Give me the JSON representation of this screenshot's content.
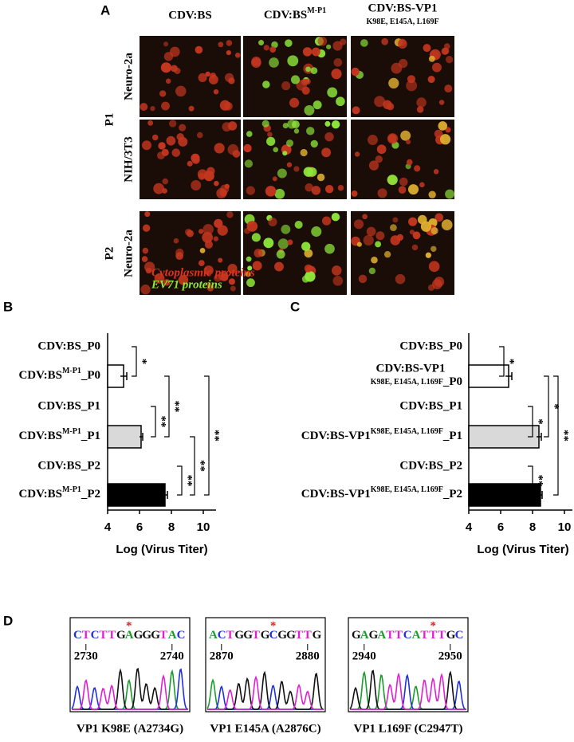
{
  "panel_a": {
    "label": "A",
    "columns": [
      "CDV:BS",
      {
        "base": "CDV:BS",
        "sup": "M-P1"
      },
      {
        "base": "CDV:BS-VP1",
        "sub": "K98E, E145A, L169F"
      }
    ],
    "groups": [
      {
        "name": "P1",
        "rows": [
          "Neuro-2a",
          "NIH/3T3"
        ]
      },
      {
        "name": "P2",
        "rows": [
          "Neuro-2a"
        ]
      }
    ],
    "legend": [
      "Cytoplasmic proteins",
      "EV71 proteins"
    ]
  },
  "panel_b": {
    "label": "B",
    "chart": {
      "type": "bar",
      "categories": [
        "CDV:BS_P0",
        {
          "base": "CDV:BS",
          "sup": "M-P1",
          "suffix": "_P0"
        },
        "CDV:BS_P1",
        {
          "base": "CDV:BS",
          "sup": "M-P1",
          "suffix": "_P1"
        },
        "CDV:BS_P2",
        {
          "base": "CDV:BS",
          "sup": "M-P1",
          "suffix": "_P2"
        }
      ],
      "values": [
        null,
        5.0,
        null,
        6.1,
        null,
        7.6
      ],
      "errors": [
        null,
        0.2,
        null,
        0.1,
        null,
        0.15
      ],
      "colors": [
        null,
        "#ffffff",
        null,
        "#d9d9d9",
        null,
        "#000000"
      ],
      "xlim": [
        4,
        10.8
      ],
      "xticks": [
        4,
        6,
        8,
        10
      ],
      "xlabel": "Log (Virus Titer)",
      "significance": [
        "*",
        "**",
        "**",
        "**",
        "**",
        "**"
      ]
    }
  },
  "panel_c": {
    "label": "C",
    "chart": {
      "type": "bar",
      "categories": [
        "CDV:BS_P0",
        {
          "base": "CDV:BS-VP1",
          "sub": "K98E, E145A, L169F",
          "suffix": "_P0"
        },
        "CDV:BS_P1",
        {
          "base": "CDV:BS-VP1",
          "sup": "K98E, E145A, L169F",
          "suffix": "_P1"
        },
        "CDV:BS_P2",
        {
          "base": "CDV:BS-VP1",
          "sup": "K98E, E145A, L169F",
          "suffix": "_P2"
        }
      ],
      "values": [
        null,
        6.5,
        null,
        8.4,
        null,
        8.5
      ],
      "errors": [
        null,
        0.2,
        null,
        0.15,
        null,
        0.1
      ],
      "colors": [
        null,
        "#ffffff",
        null,
        "#d9d9d9",
        null,
        "#000000"
      ],
      "xlim": [
        4,
        10.5
      ],
      "xticks": [
        4,
        6,
        8,
        10
      ],
      "xlabel": "Log (Virus Titer)",
      "significance": [
        "*",
        "*",
        "*",
        "**",
        "**"
      ]
    }
  },
  "panel_d": {
    "label": "D",
    "traces": [
      {
        "sequence": [
          "C",
          "T",
          "C",
          "T",
          "T",
          "G",
          "A",
          "G",
          "G",
          "G",
          "T",
          "A",
          "C"
        ],
        "marker": "*",
        "positions": [
          2730,
          2740
        ],
        "caption": "VP1 K98E (A2734G)"
      },
      {
        "sequence": [
          "A",
          "C",
          "T",
          "G",
          "G",
          "T",
          "G",
          "C",
          "G",
          "G",
          "T",
          "T",
          "G"
        ],
        "marker": "*",
        "positions": [
          2870,
          2880
        ],
        "caption": "VP1 E145A (A2876C)"
      },
      {
        "sequence": [
          "G",
          "A",
          "G",
          "A",
          "T",
          "T",
          "C",
          "A",
          "T",
          "T",
          "T",
          "G",
          "C"
        ],
        "marker": "*",
        "positions": [
          2940,
          2950
        ],
        "caption": "VP1 L169F (C2947T)"
      }
    ]
  }
}
